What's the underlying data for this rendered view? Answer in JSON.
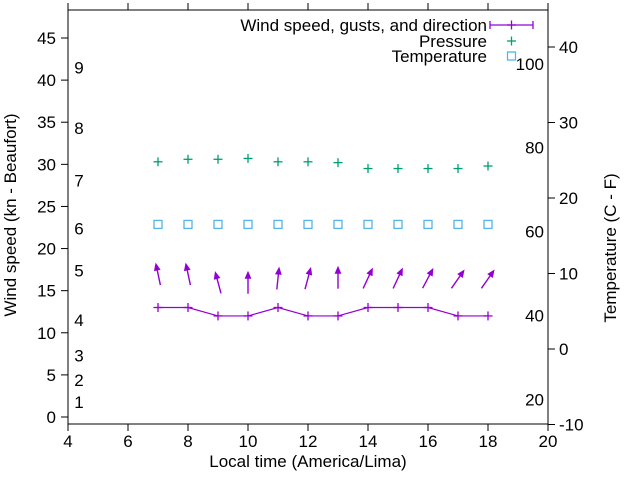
{
  "chart_data": {
    "type": "line",
    "x_hours": [
      7,
      8,
      9,
      10,
      11,
      12,
      13,
      14,
      15,
      16,
      17,
      18
    ],
    "x_axis": {
      "label": "Local time (America/Lima)",
      "ticks": [
        4,
        6,
        8,
        10,
        12,
        14,
        16,
        18,
        20
      ],
      "range": [
        4,
        20
      ]
    },
    "y_axis_left": {
      "label": "Wind speed (kn - Beaufort)",
      "ticks_kn": [
        0,
        5,
        10,
        15,
        20,
        25,
        30,
        35,
        40,
        45
      ],
      "range_kn": [
        -0.8,
        48.3
      ],
      "beaufort": [
        {
          "label": "1",
          "kn": 1.8
        },
        {
          "label": "2",
          "kn": 4.4
        },
        {
          "label": "3",
          "kn": 7.3
        },
        {
          "label": "4",
          "kn": 11.5
        },
        {
          "label": "5",
          "kn": 17.4
        },
        {
          "label": "6",
          "kn": 22.4
        },
        {
          "label": "7",
          "kn": 28.1
        },
        {
          "label": "8",
          "kn": 34.3
        },
        {
          "label": "9",
          "kn": 41.5
        }
      ]
    },
    "y_axis_right": {
      "label": "Temperature (C - F)",
      "ticks_C": [
        -10,
        0,
        10,
        20,
        30,
        40
      ],
      "labels_F": [
        20,
        40,
        60,
        80,
        100
      ],
      "range_C": [
        -10.1,
        44.9
      ]
    },
    "grid": "off",
    "legend": {
      "position": "top-right",
      "entries": [
        {
          "label": "Wind speed, gusts, and direction",
          "color": "#9400D3",
          "sample": "errorbar-line-with-plus"
        },
        {
          "label": "Pressure",
          "color": "#009E73",
          "sample": "plus"
        },
        {
          "label": "Temperature",
          "color": "#56B4E9",
          "sample": "open-square"
        }
      ]
    },
    "series": [
      {
        "name": "Wind speed, gusts, and direction",
        "type": "line",
        "marker": "plus",
        "color": "#9400D3",
        "axis": "left-kn",
        "values": [
          13,
          13,
          12,
          12,
          13,
          12,
          12,
          13,
          13,
          13,
          12,
          12
        ]
      },
      {
        "name": "Wind gust direction arrows",
        "type": "vector",
        "color": "#9400D3",
        "axis": "left-kn",
        "values": [
          17,
          17,
          16,
          16,
          16.5,
          16.5,
          16.6,
          16.5,
          16.5,
          16.5,
          16.4,
          16.4
        ],
        "direction_deg_from_north": [
          -12,
          -12,
          -15,
          0,
          6,
          15,
          0,
          25,
          25,
          28,
          35,
          35
        ]
      },
      {
        "name": "Pressure",
        "type": "points",
        "marker": "plus",
        "color": "#009E73",
        "axis": "left-kn",
        "values": [
          30.3,
          30.6,
          30.6,
          30.7,
          30.3,
          30.3,
          30.2,
          29.5,
          29.5,
          29.5,
          29.5,
          29.8
        ]
      },
      {
        "name": "Temperature",
        "type": "points",
        "marker": "open-square",
        "color": "#56B4E9",
        "axis": "right-C",
        "values": [
          16.5,
          16.5,
          16.5,
          16.5,
          16.5,
          16.5,
          16.5,
          16.5,
          16.5,
          16.5,
          16.5,
          16.5
        ]
      }
    ]
  }
}
